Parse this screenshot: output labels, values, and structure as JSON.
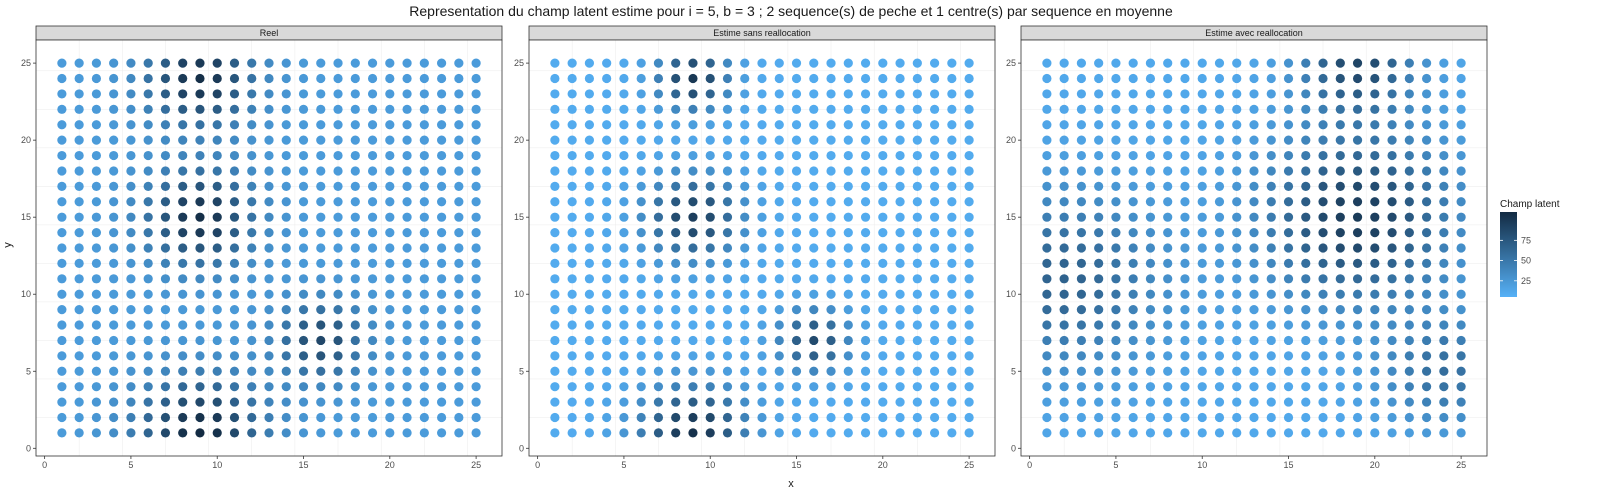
{
  "chart_data": {
    "type": "scatter",
    "title": "Representation du champ latent estime pour i = 5, b = 3 ; 2 sequence(s) de peche et 1 centre(s) par sequence en moyenne",
    "xlabel": "x",
    "ylabel": "y",
    "xlim": [
      -0.5,
      26.5
    ],
    "ylim": [
      -0.5,
      26.5
    ],
    "x_ticks": [
      0,
      5,
      10,
      15,
      20,
      25
    ],
    "y_ticks": [
      0,
      5,
      10,
      15,
      20,
      25
    ],
    "grid": true,
    "grid_x": [
      1,
      25
    ],
    "grid_y": [
      1,
      25
    ],
    "color_scale": {
      "name": "Champ latent",
      "low_color": "#56B1F7",
      "high_color": "#132B43",
      "range": [
        5,
        110
      ],
      "breaks": [
        25,
        50,
        75
      ],
      "position": "right"
    },
    "panels": [
      {
        "label": "Reel",
        "field": {
          "centers": [
            {
              "x": 9,
              "y": 24,
              "amp": 85,
              "s2": 4.5
            },
            {
              "x": 9,
              "y": 15,
              "amp": 85,
              "s2": 4.5
            },
            {
              "x": 9,
              "y": 1,
              "amp": 90,
              "s2": 6
            },
            {
              "x": 16,
              "y": 7,
              "amp": 65,
              "s2": 3
            }
          ],
          "base": 22,
          "floor": 5,
          "cap": 110
        }
      },
      {
        "label": "Estime sans reallocation",
        "field": {
          "centers": [
            {
              "x": 9,
              "y": 24,
              "amp": 90,
              "s2": 2
            },
            {
              "x": 9,
              "y": 15,
              "amp": 85,
              "s2": 3.5
            },
            {
              "x": 9,
              "y": 1,
              "amp": 95,
              "s2": 4.5
            },
            {
              "x": 16,
              "y": 7,
              "amp": 75,
              "s2": 2
            }
          ],
          "base": 10,
          "floor": 5,
          "cap": 110
        }
      },
      {
        "label": "Estime avec reallocation",
        "field": {
          "centers": [
            {
              "x": 19,
              "y": 15,
              "amp": 85,
              "s2": 14
            },
            {
              "x": 19,
              "y": 25,
              "amp": 75,
              "s2": 5
            },
            {
              "x": 2,
              "y": 11,
              "amp": 55,
              "s2": 16
            },
            {
              "x": 24,
              "y": 5,
              "amp": 45,
              "s2": 6
            }
          ],
          "base": 12,
          "floor": 5,
          "cap": 110
        }
      }
    ]
  }
}
